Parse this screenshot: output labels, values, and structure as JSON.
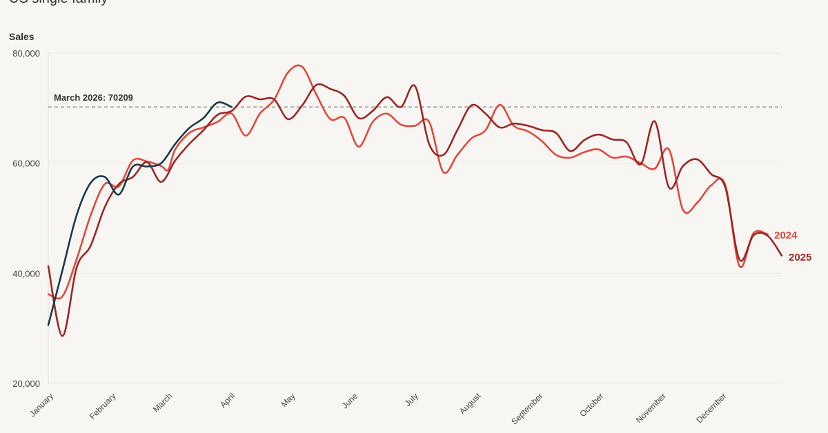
{
  "chart_data": {
    "type": "line",
    "title": "US single family",
    "ylabel": "Sales",
    "ylim": [
      20000,
      80000
    ],
    "yticks": [
      20000,
      40000,
      60000,
      80000
    ],
    "ytick_labels": [
      "20,000",
      "40,000",
      "60,000",
      "80,000"
    ],
    "x_range": [
      0,
      52
    ],
    "x_ticks": [
      {
        "label": "January",
        "week": 0
      },
      {
        "label": "February",
        "week": 4.43
      },
      {
        "label": "March",
        "week": 8.43
      },
      {
        "label": "April",
        "week": 12.86
      },
      {
        "label": "May",
        "week": 17.14
      },
      {
        "label": "June",
        "week": 21.57
      },
      {
        "label": "July",
        "week": 25.86
      },
      {
        "label": "August",
        "week": 30.29
      },
      {
        "label": "September",
        "week": 34.71
      },
      {
        "label": "October",
        "week": 39
      },
      {
        "label": "November",
        "week": 43.43
      },
      {
        "label": "December",
        "week": 47.71
      }
    ],
    "reference_line": {
      "value": 70209,
      "label": "March 2026: 70209"
    },
    "grid": true,
    "series": [
      {
        "name": "2024",
        "color": "#e0483e",
        "points": [
          [
            0,
            36200
          ],
          [
            1,
            35800
          ],
          [
            2,
            42500
          ],
          [
            3,
            50500
          ],
          [
            4,
            56200
          ],
          [
            5,
            55800
          ],
          [
            6,
            60500
          ],
          [
            7,
            60300
          ],
          [
            8,
            59500
          ],
          [
            8.5,
            58800
          ],
          [
            9,
            62500
          ],
          [
            10,
            65500
          ],
          [
            11,
            66500
          ],
          [
            12,
            67500
          ],
          [
            13,
            69000
          ],
          [
            14,
            65000
          ],
          [
            15,
            69000
          ],
          [
            16,
            71500
          ],
          [
            17,
            76500
          ],
          [
            18,
            77500
          ],
          [
            19,
            72500
          ],
          [
            20,
            68000
          ],
          [
            21,
            68200
          ],
          [
            22,
            63000
          ],
          [
            23,
            67500
          ],
          [
            24,
            69000
          ],
          [
            25,
            67000
          ],
          [
            26,
            66800
          ],
          [
            27,
            67500
          ],
          [
            28,
            58400
          ],
          [
            29,
            61500
          ],
          [
            30,
            64500
          ],
          [
            31,
            66000
          ],
          [
            32,
            70600
          ],
          [
            33,
            66800
          ],
          [
            34,
            65800
          ],
          [
            35,
            64000
          ],
          [
            36,
            61500
          ],
          [
            37,
            61000
          ],
          [
            38,
            62000
          ],
          [
            39,
            62500
          ],
          [
            40,
            61000
          ],
          [
            41,
            61200
          ],
          [
            42,
            60000
          ],
          [
            43,
            59000
          ],
          [
            44,
            62500
          ],
          [
            45,
            51500
          ],
          [
            46,
            52800
          ],
          [
            47,
            56000
          ],
          [
            48,
            56000
          ],
          [
            49,
            41300
          ],
          [
            50,
            47300
          ],
          [
            51,
            47100
          ]
        ]
      },
      {
        "name": "2025",
        "color": "#9c2626",
        "points": [
          [
            0,
            41300
          ],
          [
            1,
            28600
          ],
          [
            2,
            41000
          ],
          [
            3,
            45000
          ],
          [
            4,
            52000
          ],
          [
            5,
            56200
          ],
          [
            6,
            57500
          ],
          [
            7,
            60200
          ],
          [
            8,
            56600
          ],
          [
            9,
            60500
          ],
          [
            10,
            63500
          ],
          [
            11,
            66000
          ],
          [
            12,
            68800
          ],
          [
            13,
            69500
          ],
          [
            14,
            72100
          ],
          [
            15,
            71600
          ],
          [
            16,
            71600
          ],
          [
            17,
            68000
          ],
          [
            18,
            70500
          ],
          [
            19,
            74200
          ],
          [
            20,
            73500
          ],
          [
            21,
            72200
          ],
          [
            22,
            68200
          ],
          [
            23,
            69500
          ],
          [
            24,
            72000
          ],
          [
            25,
            70200
          ],
          [
            26,
            74000
          ],
          [
            27,
            63500
          ],
          [
            28,
            61500
          ],
          [
            29,
            66000
          ],
          [
            30,
            70500
          ],
          [
            31,
            69000
          ],
          [
            32,
            66500
          ],
          [
            33,
            67200
          ],
          [
            34,
            66800
          ],
          [
            35,
            66000
          ],
          [
            36,
            65500
          ],
          [
            37,
            62200
          ],
          [
            38,
            64200
          ],
          [
            39,
            65200
          ],
          [
            40,
            64300
          ],
          [
            41,
            63800
          ],
          [
            42,
            59800
          ],
          [
            43,
            67600
          ],
          [
            44,
            55600
          ],
          [
            45,
            59500
          ],
          [
            46,
            60700
          ],
          [
            47,
            58000
          ],
          [
            48,
            55600
          ],
          [
            49,
            42500
          ],
          [
            50,
            46900
          ],
          [
            51,
            46800
          ],
          [
            52,
            43200
          ]
        ]
      },
      {
        "name": "",
        "color": "#17384a",
        "points": [
          [
            0,
            30600
          ],
          [
            1,
            40500
          ],
          [
            2,
            50500
          ],
          [
            3,
            56400
          ],
          [
            4,
            57500
          ],
          [
            5,
            54300
          ],
          [
            6,
            59400
          ],
          [
            7,
            59400
          ],
          [
            8,
            60000
          ],
          [
            9,
            63500
          ],
          [
            10,
            66400
          ],
          [
            11,
            68200
          ],
          [
            12,
            71000
          ],
          [
            13,
            70200
          ]
        ]
      }
    ]
  }
}
